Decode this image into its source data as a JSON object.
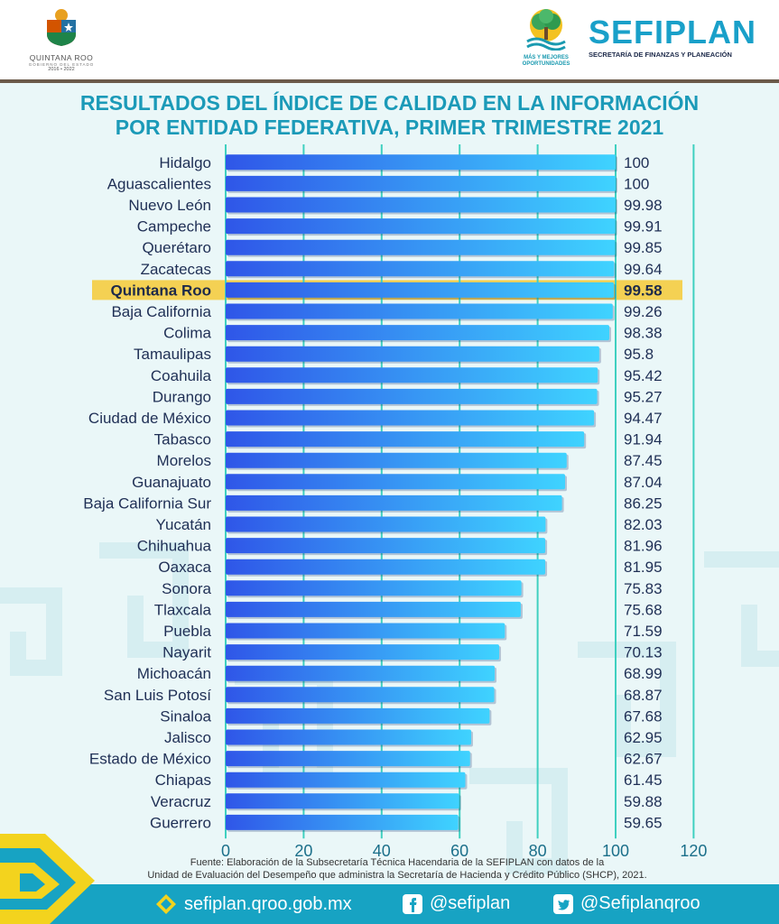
{
  "header": {
    "state_logo_name": "QUINTANA ROO",
    "state_logo_sub": "GOBIERNO DEL ESTADO",
    "state_logo_years": "2016 • 2022",
    "opp_logo_line1": "MÁS Y MEJORES",
    "opp_logo_line2": "OPORTUNIDADES",
    "agency_name": "SEFIPLAN",
    "agency_subtitle": "SECRETARÍA DE FINANZAS Y PLANEACIÓN"
  },
  "colors": {
    "bar_start": "#2f56e8",
    "bar_end": "#3fd3ff",
    "highlight": "#f4cf4a",
    "title": "#1b9ab8",
    "grid": "#3fd0c0",
    "footer": "#17a3c3"
  },
  "chart_data": {
    "type": "bar",
    "orientation": "horizontal",
    "title": "RESULTADOS DEL ÍNDICE DE CALIDAD EN LA INFORMACIÓN POR ENTIDAD FEDERATIVA, PRIMER TRIMESTRE 2021",
    "title_lines": [
      "RESULTADOS DEL ÍNDICE DE CALIDAD EN LA INFORMACIÓN",
      "POR ENTIDAD FEDERATIVA, PRIMER TRIMESTRE 2021"
    ],
    "categories": [
      "Hidalgo",
      "Aguascalientes",
      "Nuevo León",
      "Campeche",
      "Querétaro",
      "Zacatecas",
      "Quintana Roo",
      "Baja California",
      "Colima",
      "Tamaulipas",
      "Coahuila",
      "Durango",
      "Ciudad de México",
      "Tabasco",
      "Morelos",
      "Guanajuato",
      "Baja California Sur",
      "Yucatán",
      "Chihuahua",
      "Oaxaca",
      "Sonora",
      "Tlaxcala",
      "Puebla",
      "Nayarit",
      "Michoacán",
      "San Luis Potosí",
      "Sinaloa",
      "Jalisco",
      "Estado de México",
      "Chiapas",
      "Veracruz",
      "Guerrero"
    ],
    "values": [
      100,
      100,
      99.98,
      99.91,
      99.85,
      99.64,
      99.58,
      99.26,
      98.38,
      95.8,
      95.42,
      95.27,
      94.47,
      91.94,
      87.45,
      87.04,
      86.25,
      82.03,
      81.96,
      81.95,
      75.83,
      75.68,
      71.59,
      70.13,
      68.99,
      68.87,
      67.68,
      62.95,
      62.67,
      61.45,
      59.88,
      59.65
    ],
    "value_labels": [
      "100",
      "100",
      "99.98",
      "99.91",
      "99.85",
      "99.64",
      "99.58",
      "99.26",
      "98.38",
      "95.8",
      "95.42",
      "95.27",
      "94.47",
      "91.94",
      "87.45",
      "87.04",
      "86.25",
      "82.03",
      "81.96",
      "81.95",
      "75.83",
      "75.68",
      "71.59",
      "70.13",
      "68.99",
      "68.87",
      "67.68",
      "62.95",
      "62.67",
      "61.45",
      "59.88",
      "59.65"
    ],
    "highlight_category": "Quintana Roo",
    "xlim": [
      0,
      120
    ],
    "xticks": [
      0,
      20,
      40,
      60,
      80,
      100,
      120
    ],
    "grid": true,
    "legend": "none"
  },
  "source": {
    "line1": "Fuente: Elaboración de la Subsecretaría Técnica Hacendaria de la SEFIPLAN con datos de la",
    "line2": "Unidad de Evaluación del Desempeño que administra la Secretaría de Hacienda y Crédito Público (SHCP), 2021."
  },
  "footer": {
    "website": "sefiplan.qroo.gob.mx",
    "facebook": "@sefiplan",
    "twitter": "@Sefiplanqroo"
  }
}
